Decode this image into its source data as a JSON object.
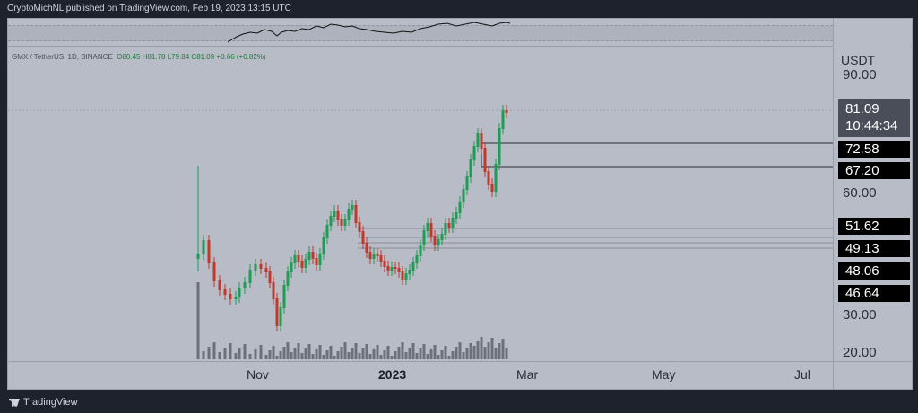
{
  "header": {
    "text": "CryptoMichNL published on TradingView.com, Feb 19, 2023 13:15 UTC"
  },
  "symbol": {
    "pair": "GMX / TetherUS, 1D, BINANCE",
    "ohlc": "O80.45 H81.78 L79.84 C81.09 +0.66 (+0.82%)"
  },
  "axis": {
    "currency": "USDT",
    "ticks": [
      "90.00",
      "60.00",
      "30.00",
      "20.00"
    ],
    "current_price": "81.09",
    "countdown": "10:44:34",
    "levels": [
      "72.58",
      "67.20",
      "51.62",
      "49.13",
      "48.06",
      "46.64"
    ]
  },
  "xaxis": {
    "labels": [
      "Nov",
      "2023",
      "Mar",
      "May",
      "Jul"
    ]
  },
  "footer": {
    "brand": "TradingView"
  },
  "colors": {
    "up": "#1f9d55",
    "down": "#c0392b",
    "background": "#b8bcc6"
  },
  "chart_data": {
    "type": "candlestick",
    "title": "",
    "x": [
      "Nov",
      "2023",
      "Mar",
      "May",
      "Jul"
    ],
    "y_ticks": [
      90,
      60,
      30,
      20
    ],
    "scale": "log",
    "last_close": 81.09,
    "horizontal_levels": [
      72.58,
      67.2,
      51.62,
      49.13,
      48.06,
      46.64
    ]
  }
}
